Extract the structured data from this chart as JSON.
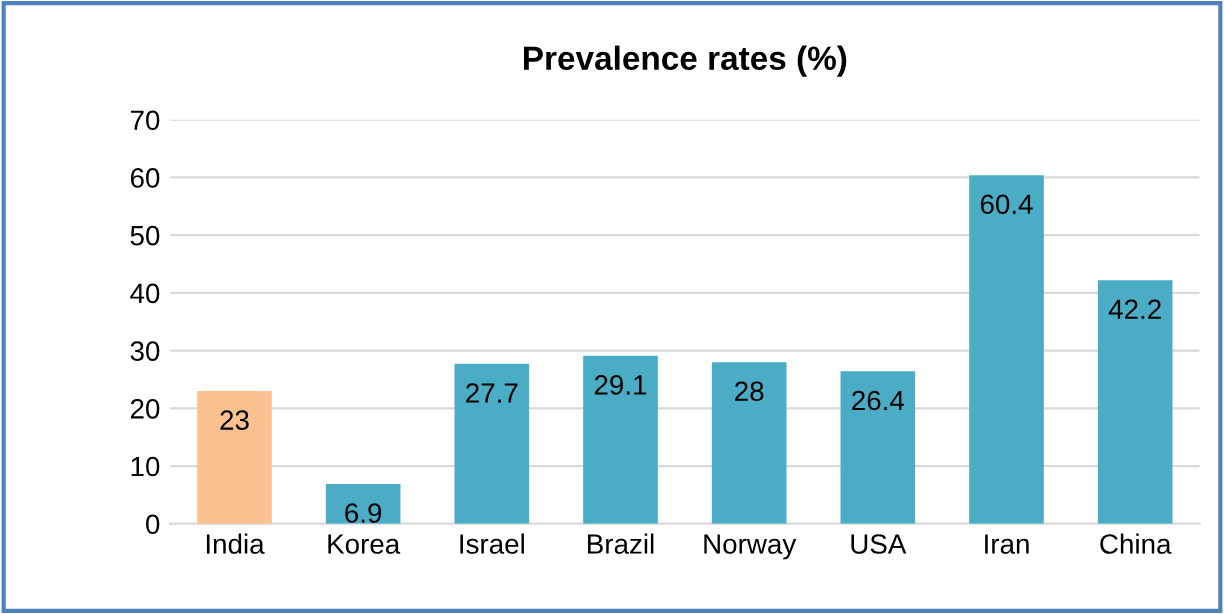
{
  "chart_data": {
    "type": "bar",
    "title": "Prevalence rates (%)",
    "categories": [
      "India",
      "Korea",
      "Israel",
      "Brazil",
      "Norway",
      "USA",
      "Iran",
      "China"
    ],
    "values": [
      23,
      6.9,
      27.7,
      29.1,
      28,
      26.4,
      60.4,
      42.2
    ],
    "colors": [
      "#fac090",
      "#4bacc6",
      "#4bacc6",
      "#4bacc6",
      "#4bacc6",
      "#4bacc6",
      "#4bacc6",
      "#4bacc6"
    ],
    "ylim": [
      0,
      70
    ],
    "yticks": [
      0,
      10,
      20,
      30,
      40,
      50,
      60,
      70
    ],
    "grid": "y",
    "data_labels": true
  }
}
